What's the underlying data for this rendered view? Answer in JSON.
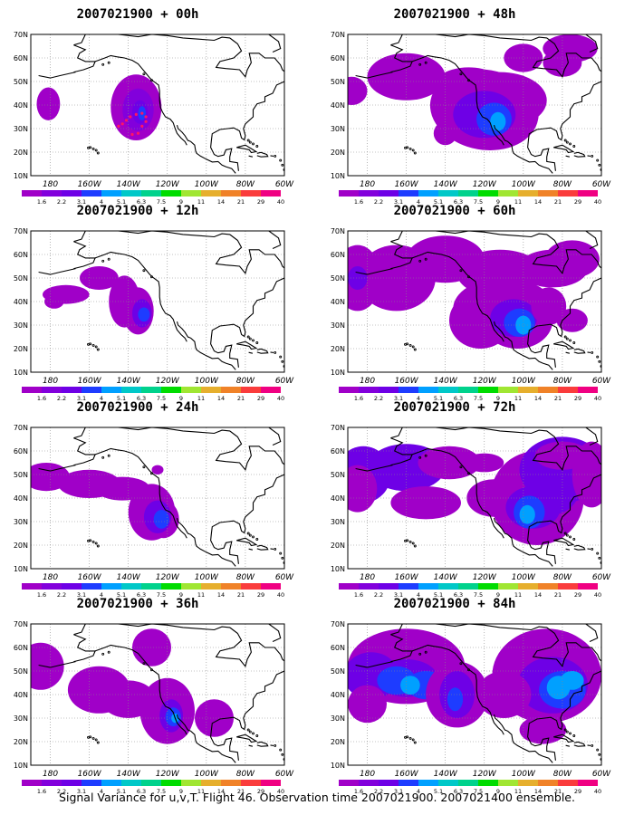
{
  "colorbar": {
    "labels": [
      "1.6",
      "2.2",
      "3.1",
      "4",
      "5.1",
      "6.3",
      "7.5",
      "9",
      "11",
      "14",
      "21",
      "29",
      "40"
    ],
    "colors": [
      "#a000c8",
      "#8200dc",
      "#6e00e6",
      "#1e3cff",
      "#00a0ff",
      "#00c8c8",
      "#00d28c",
      "#00dc00",
      "#a0e632",
      "#e6af2d",
      "#f08228",
      "#fa3c3c",
      "#f00082"
    ]
  },
  "axes": {
    "x_ticks": [
      "180",
      "160W",
      "140W",
      "120W",
      "100W",
      "80W",
      "60W"
    ],
    "y_ticks": [
      "10N",
      "20N",
      "30N",
      "40N",
      "50N",
      "60N",
      "70N"
    ],
    "lon_range": [
      -190,
      -60
    ],
    "lat_range": [
      10,
      70
    ]
  },
  "panels": [
    {
      "title": "2007021900 + 00h"
    },
    {
      "title": "2007021900 + 48h"
    },
    {
      "title": "2007021900 + 12h"
    },
    {
      "title": "2007021900 + 60h"
    },
    {
      "title": "2007021900 + 24h"
    },
    {
      "title": "2007021900 + 72h"
    },
    {
      "title": "2007021900 + 36h"
    },
    {
      "title": "2007021900 + 84h"
    }
  ],
  "caption": "Signal Variance for u,v,T. Flight 46. Observation time 2007021900. 2007021400 ensemble."
}
